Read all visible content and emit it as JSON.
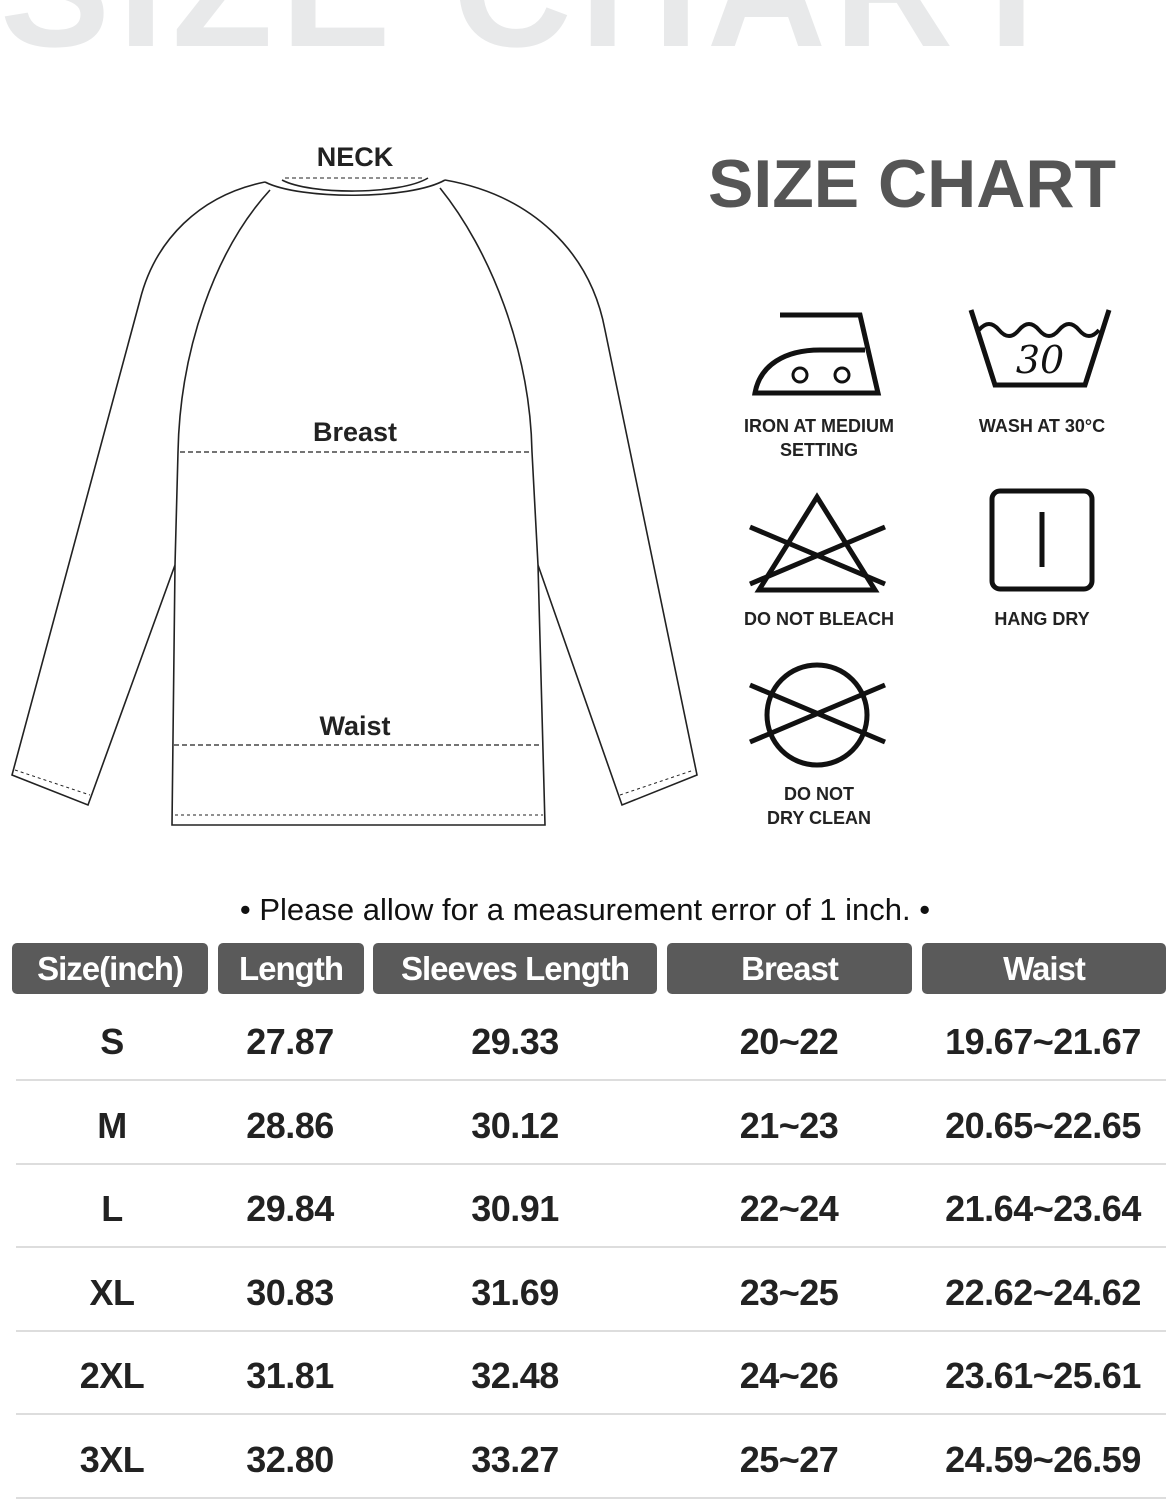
{
  "watermark": "SIZE CHART",
  "title": "SIZE CHART",
  "diagram": {
    "neck": "NECK",
    "breast": "Breast",
    "waist": "Waist"
  },
  "care": [
    {
      "icon": "iron-icon",
      "label1": "IRON AT MEDIUM",
      "label2": "SETTING"
    },
    {
      "icon": "wash-30-icon",
      "label1": "WASH AT 30°C",
      "label2": "",
      "wash_temp": "30"
    },
    {
      "icon": "no-bleach-icon",
      "label1": "DO NOT BLEACH",
      "label2": ""
    },
    {
      "icon": "hang-dry-icon",
      "label1": "HANG DRY",
      "label2": ""
    },
    {
      "icon": "no-dry-clean-icon",
      "label1": "DO NOT",
      "label2": "DRY CLEAN"
    }
  ],
  "note": "•   Please allow for a measurement error of 1 inch.   •",
  "table": {
    "headers": [
      "Size(inch)",
      "Length",
      "Sleeves Length",
      "Breast",
      "Waist"
    ],
    "rows": [
      [
        "S",
        "27.87",
        "29.33",
        "20~22",
        "19.67~21.67"
      ],
      [
        "M",
        "28.86",
        "30.12",
        "21~23",
        "20.65~22.65"
      ],
      [
        "L",
        "29.84",
        "30.91",
        "22~24",
        "21.64~23.64"
      ],
      [
        "XL",
        "30.83",
        "31.69",
        "23~25",
        "22.62~24.62"
      ],
      [
        "2XL",
        "31.81",
        "32.48",
        "24~26",
        "23.61~25.61"
      ],
      [
        "3XL",
        "32.80",
        "33.27",
        "25~27",
        "24.59~26.59"
      ]
    ]
  },
  "colors": {
    "header_bg": "#5a5a5a",
    "title": "#555555",
    "watermark": "#e8e9ea"
  }
}
